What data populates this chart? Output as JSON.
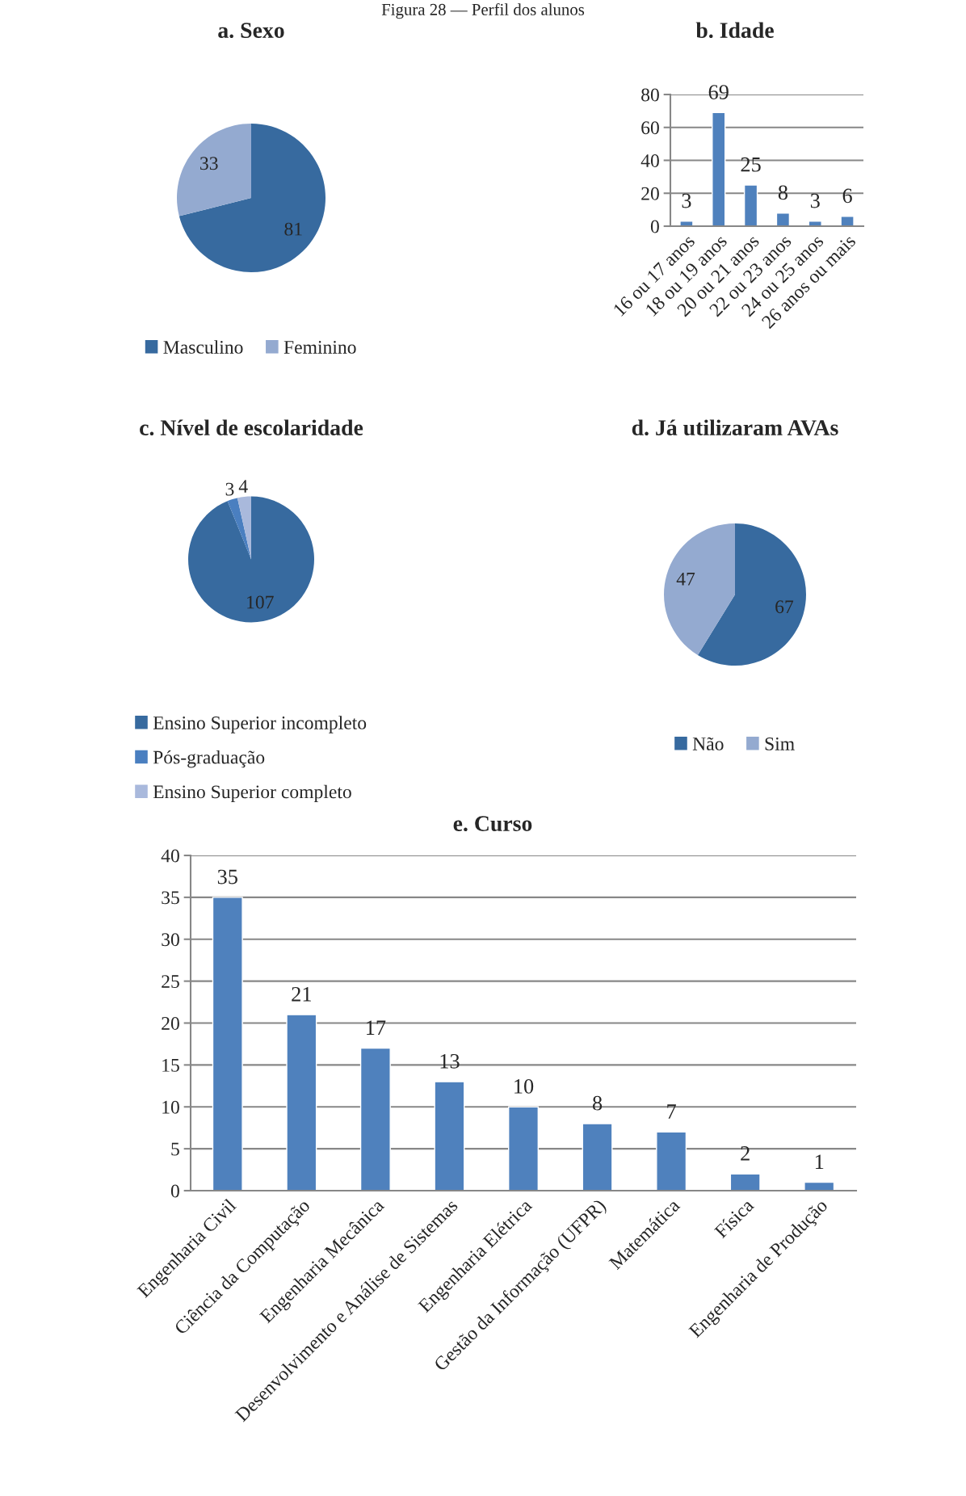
{
  "chart_data": [
    {
      "type": "pie",
      "title": "a. Sexo",
      "annotations": [
        "Figura 28 — Perfil dos alunos"
      ],
      "categories": [
        "Masculino",
        "Feminino"
      ],
      "values": [
        81,
        33
      ],
      "colors": [
        "#376a9f",
        "#94aad0"
      ],
      "data_labels": true,
      "legend": "bottom"
    },
    {
      "type": "bar",
      "title": "b. Idade",
      "categories": [
        "16 ou 17 anos",
        "18 ou 19 anos",
        "20 ou 21 anos",
        "22 ou 23 anos",
        "24 ou 25 anos",
        "26 anos ou mais"
      ],
      "values": [
        3,
        69,
        25,
        8,
        3,
        6
      ],
      "color": "#4f81bd",
      "ylim": [
        0,
        80
      ],
      "yticks": [
        0,
        20,
        40,
        60,
        80
      ],
      "grid": "y",
      "data_labels": true
    },
    {
      "type": "pie",
      "title": "c. Nível de escolaridade",
      "categories": [
        "Ensino Superior incompleto",
        "Pós-graduação",
        "Ensino Superior completo"
      ],
      "values": [
        107,
        3,
        4
      ],
      "colors": [
        "#376a9f",
        "#4a7fc0",
        "#a9b9dc"
      ],
      "data_labels": true,
      "legend": "bottom"
    },
    {
      "type": "pie",
      "title": "d. Já utilizaram AVAs",
      "categories": [
        "Não",
        "Sim"
      ],
      "values": [
        67,
        47
      ],
      "colors": [
        "#376a9f",
        "#94aad0"
      ],
      "data_labels": true,
      "legend": "bottom"
    },
    {
      "type": "bar",
      "title": "e. Curso",
      "categories": [
        "Engenharia Civil",
        "Ciência da Computação",
        "Engenharia Mecânica",
        "Desenvolvimento e Análise de Sistemas",
        "Engenharia Elétrica",
        "Gestão da Informação (UFPR)",
        "Matemática",
        "Física",
        "Engenharia de Produção"
      ],
      "values": [
        35,
        21,
        17,
        13,
        10,
        8,
        7,
        2,
        1
      ],
      "color": "#4f81bd",
      "ylim": [
        0,
        40
      ],
      "yticks": [
        0,
        5,
        10,
        15,
        20,
        25,
        30,
        35,
        40
      ],
      "grid": "y",
      "data_labels": true
    }
  ]
}
